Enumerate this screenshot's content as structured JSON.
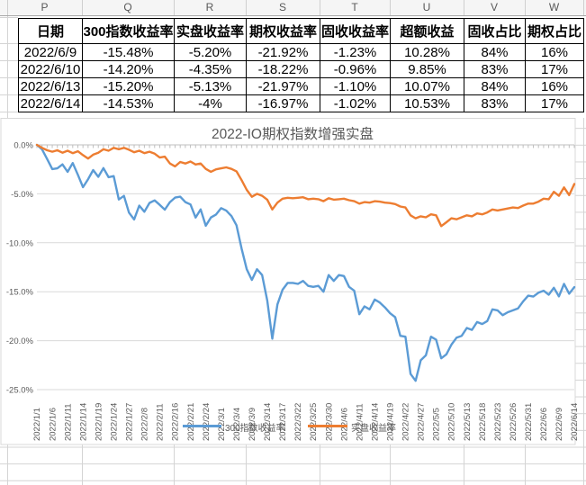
{
  "spreadsheet": {
    "column_letters": [
      "P",
      "Q",
      "R",
      "S",
      "T",
      "U",
      "V",
      "W"
    ],
    "table": {
      "headers": [
        "日期",
        "300指数收益率",
        "实盘收益率",
        "期权收益率",
        "固收收益率",
        "超额收益",
        "固收占比",
        "期权占比"
      ],
      "rows": [
        [
          "2022/6/9",
          "-15.48%",
          "-5.20%",
          "-21.92%",
          "-1.23%",
          "10.28%",
          "84%",
          "16%"
        ],
        [
          "2022/6/10",
          "-14.20%",
          "-4.35%",
          "-18.22%",
          "-0.96%",
          "9.85%",
          "83%",
          "17%"
        ],
        [
          "2022/6/13",
          "-15.20%",
          "-5.13%",
          "-21.97%",
          "-1.10%",
          "10.07%",
          "84%",
          "16%"
        ],
        [
          "2022/6/14",
          "-14.53%",
          "-4%",
          "-16.97%",
          "-1.02%",
          "10.53%",
          "83%",
          "17%"
        ]
      ]
    }
  },
  "chart_data": {
    "type": "line",
    "title": "2022-IO期权指数增强实盘",
    "legend_position": "bottom",
    "grid": true,
    "ylim": [
      -25,
      0
    ],
    "y_tick_labels": [
      "0.0%",
      "-5.0%",
      "-10.0%",
      "-15.0%",
      "-20.0%",
      "-25.0%"
    ],
    "x_label_step": 3,
    "x": [
      "2022/1/1",
      "2022/1/4",
      "2022/1/5",
      "2022/1/6",
      "2022/1/7",
      "2022/1/10",
      "2022/1/11",
      "2022/1/12",
      "2022/1/13",
      "2022/1/14",
      "2022/1/17",
      "2022/1/18",
      "2022/1/19",
      "2022/1/20",
      "2022/1/21",
      "2022/1/24",
      "2022/1/25",
      "2022/1/26",
      "2022/1/27",
      "2022/1/28",
      "2022/2/7",
      "2022/2/8",
      "2022/2/9",
      "2022/2/10",
      "2022/2/11",
      "2022/2/14",
      "2022/2/15",
      "2022/2/16",
      "2022/2/17",
      "2022/2/18",
      "2022/2/21",
      "2022/2/22",
      "2022/2/23",
      "2022/2/24",
      "2022/2/25",
      "2022/2/28",
      "2022/3/1",
      "2022/3/2",
      "2022/3/3",
      "2022/3/4",
      "2022/3/7",
      "2022/3/8",
      "2022/3/9",
      "2022/3/10",
      "2022/3/11",
      "2022/3/14",
      "2022/3/15",
      "2022/3/16",
      "2022/3/17",
      "2022/3/18",
      "2022/3/21",
      "2022/3/22",
      "2022/3/23",
      "2022/3/24",
      "2022/3/25",
      "2022/3/28",
      "2022/3/29",
      "2022/3/30",
      "2022/3/31",
      "2022/4/1",
      "2022/4/6",
      "2022/4/7",
      "2022/4/8",
      "2022/4/11",
      "2022/4/12",
      "2022/4/13",
      "2022/4/14",
      "2022/4/15",
      "2022/4/18",
      "2022/4/19",
      "2022/4/20",
      "2022/4/21",
      "2022/4/22",
      "2022/4/25",
      "2022/4/26",
      "2022/4/27",
      "2022/4/28",
      "2022/4/29",
      "2022/5/5",
      "2022/5/6",
      "2022/5/9",
      "2022/5/10",
      "2022/5/11",
      "2022/5/12",
      "2022/5/13",
      "2022/5/16",
      "2022/5/17",
      "2022/5/18",
      "2022/5/19",
      "2022/5/20",
      "2022/5/23",
      "2022/5/24",
      "2022/5/25",
      "2022/5/26",
      "2022/5/27",
      "2022/5/30",
      "2022/5/31",
      "2022/6/1",
      "2022/6/2",
      "2022/6/6",
      "2022/6/7",
      "2022/6/8",
      "2022/6/9",
      "2022/6/10",
      "2022/6/13",
      "2022/6/14"
    ],
    "series": [
      {
        "name": "300指数收益率",
        "color": "#5B9BD5",
        "values": [
          0,
          -0.46,
          -1.45,
          -2.47,
          -2.4,
          -1.99,
          -2.76,
          -1.86,
          -3.05,
          -4.32,
          -3.5,
          -2.57,
          -3.26,
          -2.37,
          -3.3,
          -3.19,
          -5.58,
          -5.21,
          -6.92,
          -7.62,
          -6.2,
          -6.83,
          -5.93,
          -5.67,
          -6.13,
          -6.62,
          -5.85,
          -5.39,
          -5.29,
          -5.85,
          -6.08,
          -7.43,
          -6.59,
          -8.26,
          -7.42,
          -7.11,
          -6.46,
          -6.72,
          -7.27,
          -8.21,
          -10.6,
          -12.7,
          -13.8,
          -12.7,
          -13.3,
          -15.9,
          -19.8,
          -16.3,
          -14.8,
          -14.1,
          -14.1,
          -14.2,
          -13.9,
          -14.4,
          -14.5,
          -14.4,
          -15,
          -13.3,
          -13.9,
          -13.3,
          -13.4,
          -14.5,
          -14.9,
          -17.3,
          -16.5,
          -16.8,
          -15.8,
          -16.1,
          -16.6,
          -17.2,
          -17.6,
          -19.5,
          -19.6,
          -23.4,
          -24.1,
          -22,
          -21.5,
          -19.6,
          -19.9,
          -21.8,
          -21.4,
          -20.4,
          -19.7,
          -19.5,
          -18.7,
          -18.9,
          -18.1,
          -18.3,
          -18,
          -16.8,
          -16.9,
          -17.4,
          -17.1,
          -16.9,
          -16.7,
          -16,
          -15.4,
          -15.5,
          -15.1,
          -14.9,
          -15.3,
          -14.6,
          -15.48,
          -14.2,
          -15.2,
          -14.53
        ]
      },
      {
        "name": "实盘收益率",
        "color": "#ED7D31",
        "values": [
          0,
          -0.3,
          -0.55,
          -0.7,
          -0.55,
          -0.8,
          -0.6,
          -0.85,
          -0.65,
          -1.05,
          -1.4,
          -1,
          -0.8,
          -0.45,
          -0.6,
          -0.3,
          -0.45,
          -0.3,
          -0.5,
          -0.75,
          -0.6,
          -0.85,
          -0.7,
          -0.9,
          -1.3,
          -1.2,
          -1.9,
          -2.2,
          -1.75,
          -1.9,
          -1.7,
          -2,
          -1.9,
          -2.45,
          -2.75,
          -2.5,
          -2.4,
          -2.3,
          -2.45,
          -2.7,
          -3.6,
          -4.6,
          -5.3,
          -5,
          -5.2,
          -5.6,
          -6.6,
          -5.9,
          -5.5,
          -5.4,
          -5.45,
          -5.4,
          -5.35,
          -5.55,
          -5.5,
          -5.55,
          -5.75,
          -5.45,
          -5.6,
          -5.55,
          -5.5,
          -5.65,
          -5.75,
          -6,
          -5.85,
          -5.9,
          -5.75,
          -5.8,
          -5.9,
          -5.95,
          -6.05,
          -6.3,
          -6.4,
          -7.2,
          -7.5,
          -7.3,
          -7.4,
          -7.1,
          -7.2,
          -8.3,
          -7.9,
          -7.5,
          -7.6,
          -7.4,
          -7.2,
          -7.3,
          -7,
          -7.1,
          -6.9,
          -6.6,
          -6.7,
          -6.6,
          -6.5,
          -6.4,
          -6.45,
          -6.2,
          -6,
          -6,
          -5.8,
          -5.5,
          -5.55,
          -4.8,
          -5.2,
          -4.35,
          -5.13,
          -4
        ]
      }
    ]
  },
  "colors": {
    "series_blue": "#5B9BD5",
    "series_orange": "#ED7D31",
    "axis_text": "#595959",
    "chart_gridline": "#D9D9D9",
    "axis_line": "#BFBFBF",
    "sheet_gridline": "#D4D4D4",
    "table_border": "#000000",
    "band_letter": "#595959"
  }
}
